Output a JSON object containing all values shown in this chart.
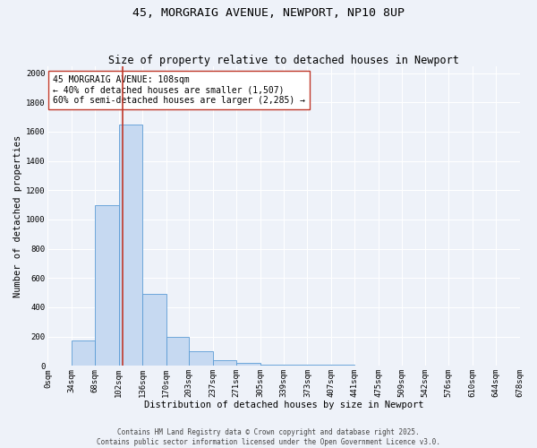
{
  "title": "45, MORGRAIG AVENUE, NEWPORT, NP10 8UP",
  "subtitle": "Size of property relative to detached houses in Newport",
  "xlabel": "Distribution of detached houses by size in Newport",
  "ylabel": "Number of detached properties",
  "bar_color": "#c6d9f1",
  "bar_edge_color": "#5b9bd5",
  "background_color": "#eef2f9",
  "grid_color": "#ffffff",
  "bins": [
    0,
    34,
    68,
    102,
    136,
    170,
    203,
    237,
    271,
    305,
    339,
    373,
    407,
    441,
    475,
    509,
    542,
    576,
    610,
    644,
    678
  ],
  "counts": [
    0,
    175,
    1100,
    1650,
    490,
    200,
    100,
    40,
    20,
    5,
    5,
    10,
    5,
    0,
    0,
    0,
    0,
    0,
    0,
    0
  ],
  "bin_labels": [
    "0sqm",
    "34sqm",
    "68sqm",
    "102sqm",
    "136sqm",
    "170sqm",
    "203sqm",
    "237sqm",
    "271sqm",
    "305sqm",
    "339sqm",
    "373sqm",
    "407sqm",
    "441sqm",
    "475sqm",
    "509sqm",
    "542sqm",
    "576sqm",
    "610sqm",
    "644sqm",
    "678sqm"
  ],
  "property_size": 108,
  "property_line_color": "#c0392b",
  "annotation_line1": "45 MORGRAIG AVENUE: 108sqm",
  "annotation_line2": "← 40% of detached houses are smaller (1,507)",
  "annotation_line3": "60% of semi-detached houses are larger (2,285) →",
  "annotation_box_color": "#ffffff",
  "annotation_box_edge_color": "#c0392b",
  "ylim": [
    0,
    2050
  ],
  "yticks": [
    0,
    200,
    400,
    600,
    800,
    1000,
    1200,
    1400,
    1600,
    1800,
    2000
  ],
  "footer1": "Contains HM Land Registry data © Crown copyright and database right 2025.",
  "footer2": "Contains public sector information licensed under the Open Government Licence v3.0.",
  "title_fontsize": 9.5,
  "subtitle_fontsize": 8.5,
  "axis_label_fontsize": 7.5,
  "tick_fontsize": 6.5,
  "annotation_fontsize": 7,
  "footer_fontsize": 5.5
}
